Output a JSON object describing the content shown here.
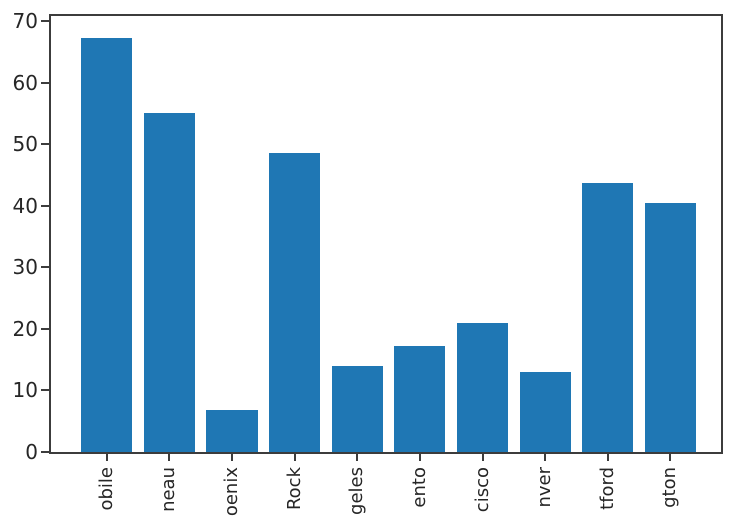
{
  "chart_data": {
    "type": "bar",
    "title": "",
    "xlabel": "",
    "ylabel": "",
    "categories": [
      "obile",
      "neau",
      "oenix",
      "Rock",
      "geles",
      "ento",
      "cisco",
      "nver",
      "tford",
      "gton"
    ],
    "values": [
      67.2,
      55.0,
      6.8,
      48.6,
      13.9,
      17.2,
      20.9,
      13.0,
      43.7,
      40.4
    ],
    "yticks": [
      0,
      10,
      20,
      30,
      40,
      50,
      60,
      70
    ],
    "ylim": [
      0,
      71
    ],
    "grid": false,
    "legend": "none",
    "x_tick_rotation": 90,
    "x_labels_clipped_at_bottom": true,
    "bar_color": "#1f77b4",
    "axis_color": "#3c3c3c",
    "text_color": "#262626",
    "background_color": "#ffffff"
  }
}
